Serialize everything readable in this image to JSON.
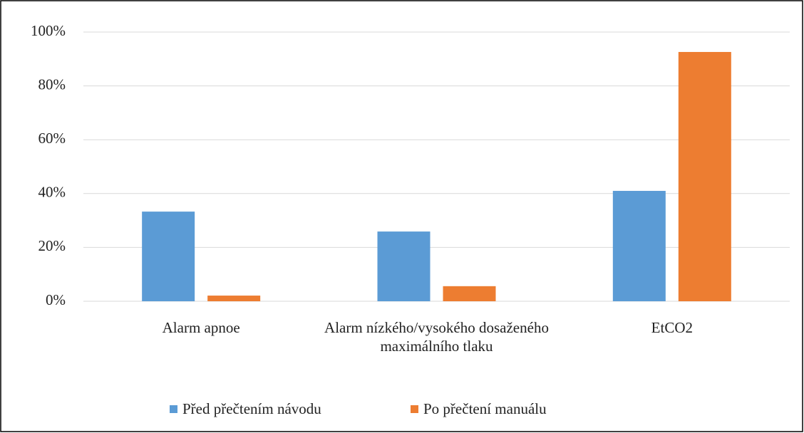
{
  "chart_data": {
    "type": "bar",
    "categories": [
      "Alarm apnoe",
      "Alarm nízkého/vysokého dosaženého maximálního tlaku",
      "EtCO2"
    ],
    "series": [
      {
        "name": "Před přečtením návodu",
        "color": "#5b9bd5",
        "values": [
          33.3,
          25.9,
          41
        ]
      },
      {
        "name": "Po přečtení manuálu",
        "color": "#ed7d31",
        "values": [
          2.1,
          5.6,
          92.6
        ]
      }
    ],
    "ylim": [
      0,
      100
    ],
    "yticks": [
      {
        "value": 0,
        "label": "0%"
      },
      {
        "value": 20,
        "label": "20%"
      },
      {
        "value": 40,
        "label": "40%"
      },
      {
        "value": 60,
        "label": "60%"
      },
      {
        "value": 80,
        "label": "80%"
      },
      {
        "value": 100,
        "label": "100%"
      }
    ],
    "grid": true,
    "legend": "bottom"
  }
}
